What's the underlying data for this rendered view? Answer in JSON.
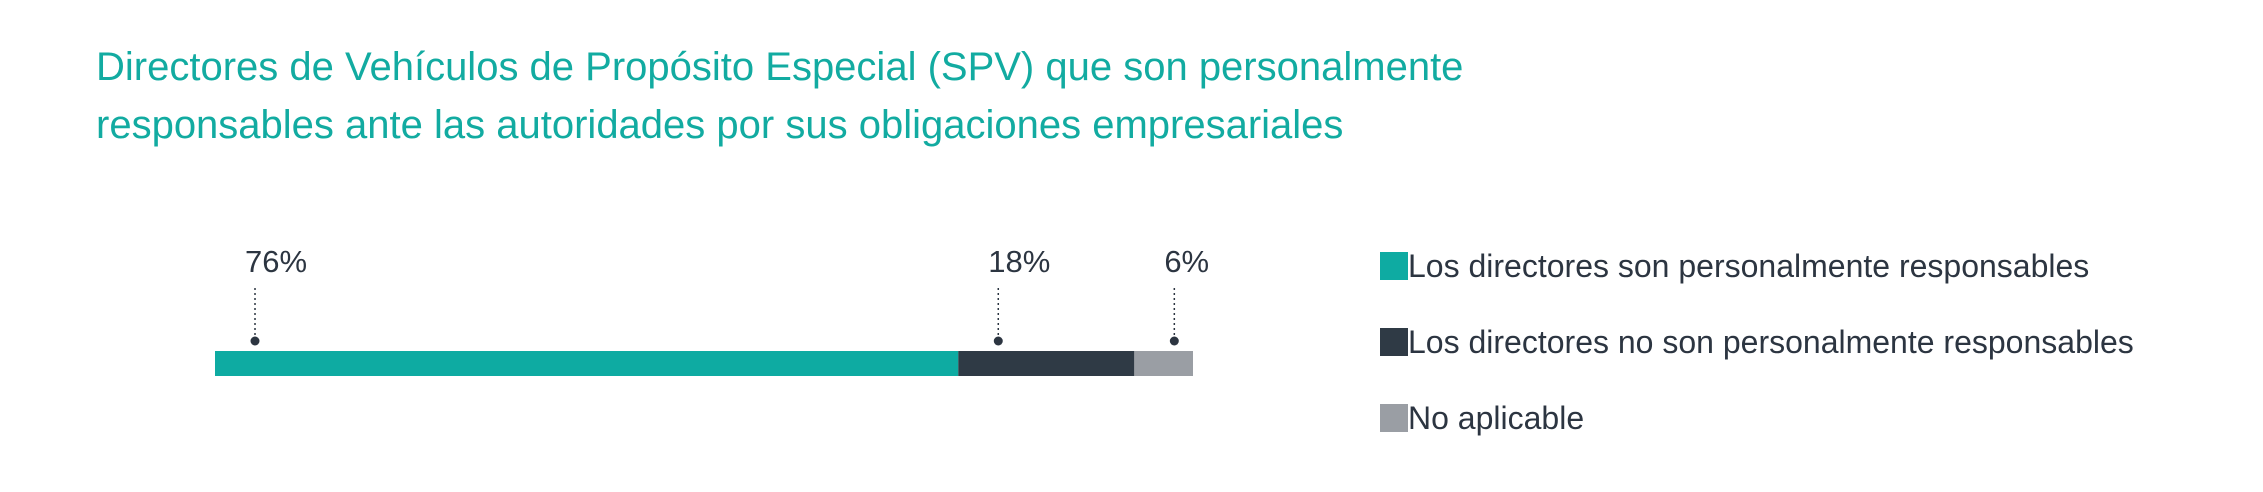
{
  "title": {
    "line1": "Directores de Vehículos de Propósito Especial (SPV) que son personalmente",
    "line2": "responsables ante las autoridades por sus obligaciones empresariales"
  },
  "chart_data": {
    "type": "bar",
    "orientation": "horizontal-stacked-100",
    "title": "Directores de Vehículos de Propósito Especial (SPV) que son personalmente responsables ante las autoridades por sus obligaciones empresariales",
    "categories": [
      ""
    ],
    "unit": "%",
    "series": [
      {
        "name": "Los directores son personalmente responsables",
        "values": [
          76
        ],
        "label": "76%",
        "color": "#0eaba2"
      },
      {
        "name": "Los directores no son personalmente responsables",
        "values": [
          18
        ],
        "label": "18%",
        "color": "#2f3a45"
      },
      {
        "name": "No aplicable",
        "values": [
          6
        ],
        "label": "6%",
        "color": "#9a9ea4"
      }
    ],
    "xlim": [
      0,
      100
    ],
    "grid": false,
    "legend_position": "right"
  }
}
